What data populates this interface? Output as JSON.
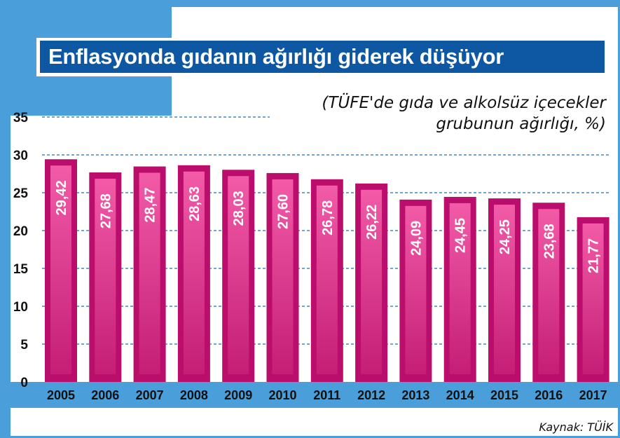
{
  "title": "Enflasyonda gıdanın ağırlığı giderek düşüyor",
  "subtitle_lines": [
    "(TÜFE'de gıda ve alkolsüz içecekler",
    "grubunun ağırlığı, %)"
  ],
  "source": "Kaynak: TÜİK",
  "colors": {
    "frame_blue": "#4a9fdb",
    "title_blue": "#0e57a2",
    "bar_outer": "#bb0d6c",
    "bar_inner_light": "#f25ba8",
    "bar_inner_dark": "#c41e75",
    "grid": "#1d6fb8"
  },
  "chart_data": {
    "type": "bar",
    "categories": [
      "2005",
      "2006",
      "2007",
      "2008",
      "2009",
      "2010",
      "2011",
      "2012",
      "2013",
      "2014",
      "2015",
      "2016",
      "2017"
    ],
    "values": [
      29.42,
      27.68,
      28.47,
      28.63,
      28.03,
      27.6,
      26.78,
      26.22,
      24.09,
      24.45,
      24.25,
      23.68,
      21.77
    ],
    "value_labels": [
      "29,42",
      "27,68",
      "28,47",
      "28,63",
      "28,03",
      "27,60",
      "26,78",
      "26,22",
      "24,09",
      "24,45",
      "24,25",
      "23,68",
      "21,77"
    ],
    "yticks": [
      "0",
      "5",
      "10",
      "15",
      "20",
      "25",
      "30",
      "35"
    ],
    "ylim": [
      0,
      35
    ],
    "grid": true,
    "title": "Enflasyonda gıdanın ağırlığı giderek düşüyor",
    "xlabel": "",
    "ylabel": ""
  }
}
